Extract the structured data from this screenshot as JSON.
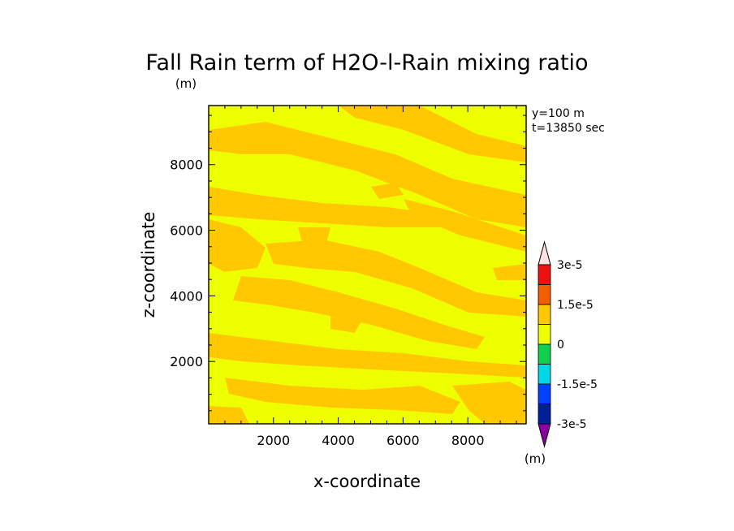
{
  "chart_data": {
    "type": "heatmap",
    "title": "Fall Rain term of H2O-l-Rain mixing ratio",
    "units_label": "(m)",
    "xlabel": "x-coordinate",
    "ylabel": "z-coordinate",
    "xlim": [
      0,
      9800
    ],
    "ylim": [
      100,
      9800
    ],
    "x_ticks": [
      2000,
      4000,
      6000,
      8000
    ],
    "y_ticks": [
      2000,
      4000,
      6000,
      8000
    ],
    "info": [
      "y=100 m",
      "t=13850 sec"
    ],
    "colorbar": {
      "levels": [
        -3e-05,
        -2.25e-05,
        -1.5e-05,
        -7.5e-06,
        0,
        7.5e-06,
        1.5e-05,
        2.25e-05,
        3e-05
      ],
      "tick_labels": [
        "3e-5",
        "1.5e-5",
        "0",
        "-1.5e-5",
        "-3e-5"
      ],
      "tick_values": [
        3e-05,
        1.5e-05,
        0,
        -1.5e-05,
        -3e-05
      ],
      "unit_label": "(m)",
      "colors": [
        "#8b00a0",
        "#00209a",
        "#0040ff",
        "#00d8e8",
        "#10d050",
        "#eeff00",
        "#ffc800",
        "#f06000",
        "#ee1010",
        "#ee9090",
        "#ffe0e0"
      ]
    },
    "grid": false,
    "field_description": "predominantly 0 to 7.5e-6 (yellow) with diagonal bands of 7.5e-6 to 1.5e-5 (orange)"
  },
  "colors": {
    "yellow": "#eeff00",
    "orange": "#ffc800"
  }
}
